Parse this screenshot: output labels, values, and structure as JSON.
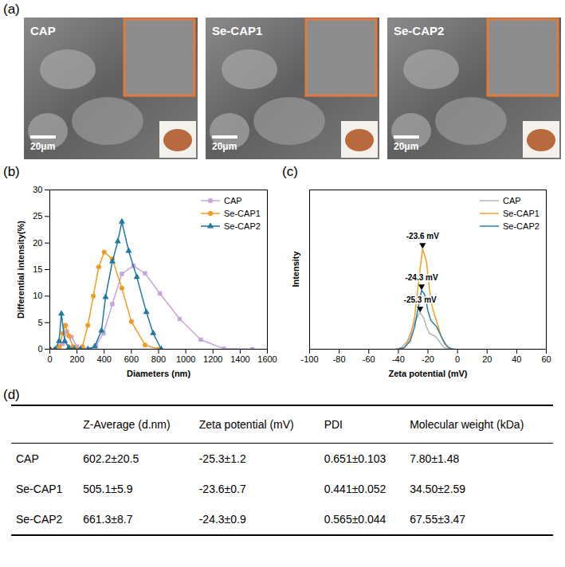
{
  "panel_a": {
    "panel_label": "(a)",
    "images": [
      {
        "label": "CAP",
        "scale_bar": "20μm"
      },
      {
        "label": "Se-CAP1",
        "scale_bar": "20μm"
      },
      {
        "label": "Se-CAP2",
        "scale_bar": "20μm"
      }
    ]
  },
  "chart_data": [
    {
      "panel_label": "(b)",
      "type": "line",
      "x_label": "Diameters (nm)",
      "y_label": "Differential intensity(%)",
      "xlim": [
        0,
        1600
      ],
      "xticks": [
        0,
        200,
        400,
        600,
        800,
        1000,
        1200,
        1400,
        1600
      ],
      "ylim": [
        0,
        30
      ],
      "yticks": [
        0,
        5,
        10,
        15,
        20,
        25,
        30
      ],
      "legend": "top-right",
      "series": [
        {
          "name": "CAP",
          "color": "#c4a6d8",
          "marker": "square",
          "x": [
            0,
            40,
            68,
            95,
            125,
            160,
            200,
            250,
            295,
            340,
            395,
            460,
            530,
            615,
            700,
            810,
            955,
            1110,
            1280,
            1490
          ],
          "values": [
            0,
            0,
            0,
            1.0,
            3.3,
            2.3,
            0.5,
            0,
            0,
            0.7,
            3.0,
            8.5,
            14.2,
            15.7,
            14.3,
            10.5,
            5.7,
            1.8,
            0.1,
            0
          ]
        },
        {
          "name": "Se-CAP1",
          "color": "#f39a21",
          "marker": "circle",
          "x": [
            0,
            40,
            70,
            95,
            115,
            140,
            170,
            200,
            240,
            280,
            320,
            360,
            400,
            460,
            530,
            600,
            700,
            800
          ],
          "values": [
            0,
            0,
            0.5,
            3.0,
            4.5,
            2.5,
            0.5,
            0,
            0.5,
            4.5,
            10.0,
            15.5,
            18.3,
            17.0,
            11.5,
            5.2,
            0.8,
            0
          ]
        },
        {
          "name": "Se-CAP2",
          "color": "#1f78a6",
          "marker": "triangle",
          "x": [
            0,
            40,
            68,
            85,
            110,
            140,
            180,
            225,
            280,
            330,
            380,
            410,
            460,
            500,
            530,
            580,
            640,
            710,
            760,
            820
          ],
          "values": [
            0,
            0,
            1.5,
            6.7,
            1.5,
            0.3,
            0,
            0,
            0,
            0.5,
            3.5,
            9.8,
            16.5,
            20.3,
            24.0,
            18.5,
            13.6,
            7.0,
            3.0,
            0
          ]
        }
      ]
    },
    {
      "panel_label": "(c)",
      "type": "line",
      "x_label": "Zeta potential (mV)",
      "y_label": "Intensity",
      "xlim": [
        -100,
        60
      ],
      "xticks": [
        -100,
        -80,
        -60,
        -40,
        -20,
        0,
        20,
        40,
        60
      ],
      "ylim": [
        0,
        100
      ],
      "yticks": [],
      "tick_labels": "x",
      "legend": "top-right",
      "annotations": [
        {
          "text": "-23.6 mV",
          "x": -23.6,
          "series": "Se-CAP1"
        },
        {
          "text": "-24.3 mV",
          "x": -24.3,
          "series": "Se-CAP2"
        },
        {
          "text": "-25.3 mV",
          "x": -25.3,
          "series": "CAP"
        }
      ],
      "series": [
        {
          "name": "CAP",
          "color": "#b5b5b5",
          "x": [
            -42,
            -38,
            -34,
            -31,
            -28,
            -25.3,
            -23,
            -21,
            -19,
            -17,
            -15,
            -13,
            -11,
            -9,
            -7,
            -5
          ],
          "values": [
            0,
            1,
            5,
            12,
            19,
            23,
            20,
            14,
            10,
            9,
            8,
            6,
            3,
            1,
            0.3,
            0
          ]
        },
        {
          "name": "Se-CAP1",
          "color": "#f5a020",
          "x": [
            -40,
            -36,
            -32,
            -29,
            -26,
            -23.6,
            -21,
            -19,
            -17,
            -15,
            -13,
            -11,
            -9,
            -7,
            -5,
            -3
          ],
          "values": [
            0,
            1,
            7,
            20,
            45,
            63,
            55,
            38,
            26,
            20,
            14,
            8,
            4,
            1.5,
            0.5,
            0
          ]
        },
        {
          "name": "Se-CAP2",
          "color": "#2a7fa8",
          "x": [
            -40,
            -36,
            -32,
            -29,
            -26,
            -24.3,
            -22,
            -20,
            -18,
            -16,
            -14,
            -12,
            -10,
            -8,
            -6,
            -4,
            -2
          ],
          "values": [
            0,
            1,
            5,
            14,
            29,
            37,
            34,
            24,
            18,
            16,
            14,
            10,
            6,
            3,
            1,
            0.3,
            0
          ]
        }
      ]
    }
  ],
  "table": {
    "panel_label": "(d)",
    "columns": [
      "Z-Average (d.nm)",
      "Zeta potential (mV)",
      "PDI",
      "Molecular weight (kDa)"
    ],
    "rows": [
      {
        "name": "CAP",
        "cells": [
          "602.2±20.5",
          "-25.3±1.2",
          "0.651±0.103",
          "7.80±1.48"
        ]
      },
      {
        "name": "Se-CAP1",
        "cells": [
          "505.1±5.9",
          "-23.6±0.7",
          "0.441±0.052",
          "34.50±2.59"
        ]
      },
      {
        "name": "Se-CAP2",
        "cells": [
          "661.3±8.7",
          "-24.3±0.9",
          "0.565±0.044",
          "67.55±3.47"
        ]
      }
    ]
  }
}
